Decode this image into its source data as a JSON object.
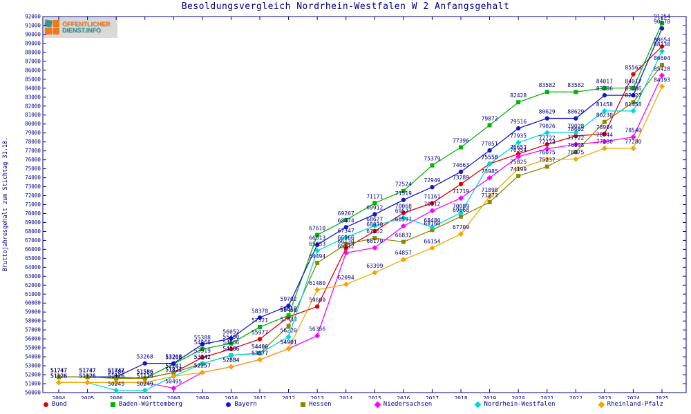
{
  "page": {
    "title": "Besoldungsvergleich Nordrhein-Westfalen W 2 Anfangsgehalt"
  },
  "logo": {
    "line1": "ÖFFENTLICHER",
    "line2": "DIENST.INFO"
  },
  "chart_data": {
    "type": "line",
    "title": "Besoldungsvergleich Nordrhein-Westfalen W 2 Anfangsgehalt",
    "xlabel": "",
    "ylabel": "Bruttojahresgehalt zum Stichtag 31.10.",
    "ylim": [
      50000,
      92000
    ],
    "ytick_step": 1000,
    "grid": false,
    "legend_position": "bottom",
    "axis_color": "#000080",
    "label_color": "#000080",
    "x": [
      2004,
      2005,
      2006,
      2007,
      2008,
      2009,
      2010,
      2011,
      2012,
      2013,
      2014,
      2015,
      2016,
      2017,
      2018,
      2019,
      2020,
      2021,
      2022,
      2023,
      2024,
      2025
    ],
    "series": [
      {
        "name": "Bund",
        "color": "#e00000",
        "marker": "circle",
        "values": [
          51747,
          51747,
          51747,
          51586,
          52241,
          53919,
          54866,
          55977,
          58458,
          59609,
          66130,
          68030,
          70068,
          71161,
          73289,
          75558,
          76653,
          77722,
          78662,
          78904,
          85563,
          88654
        ]
      },
      {
        "name": "Baden-Württemberg",
        "color": "#00b400",
        "marker": "square",
        "values": [
          51747,
          51747,
          51747,
          51586,
          53208,
          54866,
          55490,
          57321,
          58618,
          67610,
          69267,
          71171,
          72524,
          75379,
          77396,
          79872,
          82428,
          83582,
          83582,
          84017,
          84017,
          91254
        ]
      },
      {
        "name": "Bayern",
        "color": "#1616cc",
        "marker": "circle",
        "values": [
          51747,
          51747,
          51747,
          53268,
          53268,
          55388,
          56052,
          58378,
          59702,
          66513,
          68474,
          69912,
          71519,
          72949,
          74663,
          77051,
          79516,
          80629,
          80629,
          83206,
          83206,
          90678
        ]
      },
      {
        "name": "Hessen",
        "color": "#8a8a00",
        "marker": "square",
        "values": [
          51747,
          51747,
          51586,
          51586,
          52241,
          53242,
          54166,
          54406,
          57433,
          64494,
          66566,
          67252,
          66832,
          68160,
          69668,
          71273,
          74199,
          75237,
          76898,
          80230,
          82427,
          86604
        ]
      },
      {
        "name": "Niedersachsen",
        "color": "#ff00ff",
        "marker": "diamond",
        "values": [
          51126,
          51126,
          51126,
          51126,
          50495,
          52257,
          52884,
          53677,
          54901,
          56356,
          65612,
          66170,
          68597,
          70312,
          71719,
          73985,
          76354,
          77223,
          77722,
          78044,
          78540,
          85428
        ]
      },
      {
        "name": "Nordrhein-Westfalen",
        "color": "#00d8d8",
        "marker": "diamond",
        "values": [
          51126,
          51126,
          50249,
          50249,
          51821,
          53242,
          54166,
          54406,
          56220,
          65853,
          67347,
          68627,
          69527,
          68480,
          70089,
          75558,
          77935,
          79026,
          79028,
          81458,
          81458,
          88130
        ]
      },
      {
        "name": "Rheinland-Pfalz",
        "color": "#f0a800",
        "marker": "diamond",
        "values": [
          51126,
          51126,
          51126,
          51126,
          51821,
          52257,
          52884,
          53677,
          54901,
          61480,
          62094,
          63399,
          64857,
          66154,
          67709,
          71898,
          75025,
          76075,
          76075,
          77280,
          77280,
          84193
        ]
      }
    ]
  }
}
